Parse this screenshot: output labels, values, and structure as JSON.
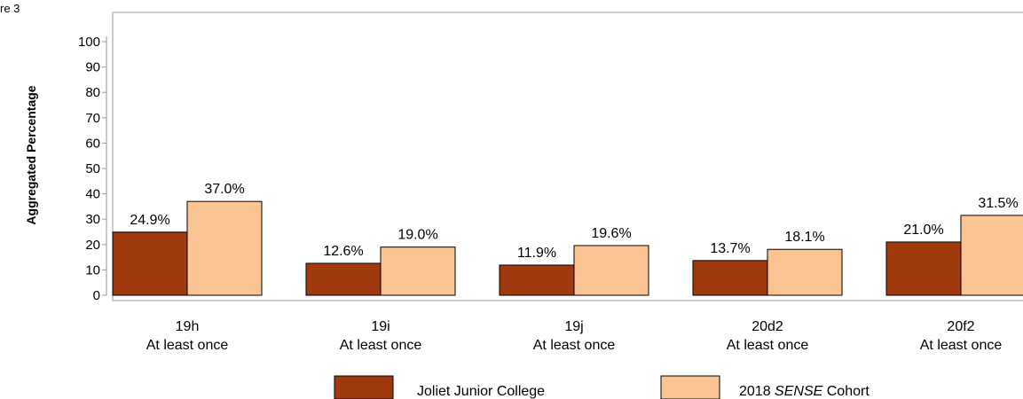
{
  "figure_label": "re 3",
  "colors": {
    "series1": "#a0390c",
    "series2": "#fbc593"
  },
  "chart_data": {
    "type": "bar",
    "ylabel": "Aggregated Percentage",
    "ylim": [
      0,
      100
    ],
    "yticks": [
      0,
      10,
      20,
      30,
      40,
      50,
      60,
      70,
      80,
      90,
      100
    ],
    "categories": [
      {
        "code": "19h",
        "sub": "At least once"
      },
      {
        "code": "19i",
        "sub": "At least once"
      },
      {
        "code": "19j",
        "sub": "At least once"
      },
      {
        "code": "20d2",
        "sub": "At least once"
      },
      {
        "code": "20f2",
        "sub": "At least once"
      }
    ],
    "series": [
      {
        "name": "Joliet Junior College",
        "values": [
          24.9,
          12.6,
          11.9,
          13.7,
          21.0
        ],
        "labels": [
          "24.9%",
          "12.6%",
          "11.9%",
          "13.7%",
          "21.0%"
        ]
      },
      {
        "name_prefix": "2018 ",
        "name_italic": "SENSE",
        "name_suffix": " Cohort",
        "values": [
          37.0,
          19.0,
          19.6,
          18.1,
          31.5
        ],
        "labels": [
          "37.0%",
          "19.0%",
          "19.6%",
          "18.1%",
          "31.5%"
        ]
      }
    ],
    "legend_position": "bottom",
    "grid": false
  }
}
